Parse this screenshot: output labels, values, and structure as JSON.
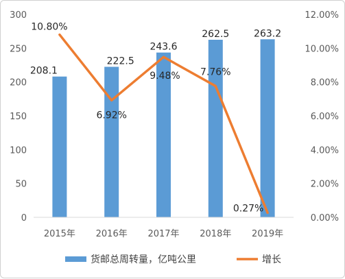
{
  "chart_data": {
    "type": "bar",
    "categories": [
      "2015年",
      "2016年",
      "2017年",
      "2018年",
      "2019年"
    ],
    "series": [
      {
        "name": "货邮总周转量，亿吨公里",
        "type": "bar",
        "axis": "left",
        "values": [
          208.1,
          222.5,
          243.6,
          262.5,
          263.2
        ],
        "labels": [
          "208.1",
          "222.5",
          "243.6",
          "262.5",
          "263.2"
        ],
        "color": "#5B9BD5"
      },
      {
        "name": "增长",
        "type": "line",
        "axis": "right",
        "values": [
          10.8,
          6.92,
          9.48,
          7.76,
          0.27
        ],
        "labels": [
          "10.80%",
          "6.92%",
          "9.48%",
          "7.76%",
          "0.27%"
        ],
        "color": "#ED7D31"
      }
    ],
    "y_left": {
      "ylim": [
        0,
        300
      ],
      "ticks": [
        "0",
        "50",
        "100",
        "150",
        "200",
        "250",
        "300"
      ]
    },
    "y_right": {
      "ylim": [
        0,
        12
      ],
      "ticks": [
        "0.00%",
        "2.00%",
        "4.00%",
        "6.00%",
        "8.00%",
        "10.00%",
        "12.00%"
      ]
    },
    "grid": false,
    "legend": "bottom"
  }
}
